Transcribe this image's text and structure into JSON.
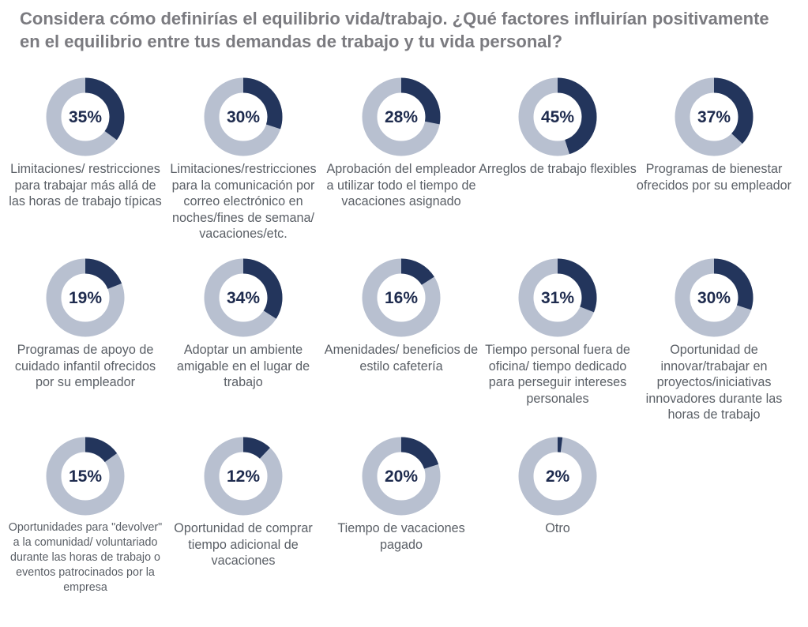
{
  "header": {
    "title": "Considera cómo definirías el equilibrio vida/trabajo. ¿Qué factores influirían positivamente en el equilibrio entre tus demandas de trabajo y tu vida personal?"
  },
  "colors": {
    "fill": "#23355c",
    "track": "#b8c0d0",
    "label": "#5a5f66",
    "title": "#7b7b80"
  },
  "chart_data": {
    "type": "pie",
    "items": [
      {
        "value": 35,
        "display": "35%",
        "label": "Limitaciones/ restricciones para trabajar más allá de las horas de trabajo típicas"
      },
      {
        "value": 30,
        "display": "30%",
        "label": "Limitaciones/restricciones para la comunicación por correo electrónico en noches/fines de semana/ vacaciones/etc."
      },
      {
        "value": 28,
        "display": "28%",
        "label": "Aprobación del empleador a utilizar todo el tiempo de vacaciones asignado"
      },
      {
        "value": 45,
        "display": "45%",
        "label": "Arreglos de trabajo flexibles"
      },
      {
        "value": 37,
        "display": "37%",
        "label": "Programas de bienestar ofrecidos por su empleador"
      },
      {
        "value": 19,
        "display": "19%",
        "label": "Programas de apoyo de cuidado infantil ofrecidos por su empleador"
      },
      {
        "value": 34,
        "display": "34%",
        "label": "Adoptar un ambiente amigable en el lugar de trabajo"
      },
      {
        "value": 16,
        "display": "16%",
        "label": "Amenidades/ beneficios de estilo cafetería"
      },
      {
        "value": 31,
        "display": "31%",
        "label": "Tiempo personal fuera de oficina/ tiempo dedicado para perseguir intereses personales"
      },
      {
        "value": 30,
        "display": "30%",
        "label": "Oportunidad de innovar/trabajar en proyectos/iniciativas innovadores durante las horas de trabajo"
      },
      {
        "value": 15,
        "display": "15%",
        "label": "Oportunidades para \"devolver\" a la comunidad/ voluntariado durante las horas de trabajo o eventos patrocinados por la empresa"
      },
      {
        "value": 12,
        "display": "12%",
        "label": "Oportunidad de comprar tiempo adicional de vacaciones"
      },
      {
        "value": 20,
        "display": "20%",
        "label": "Tiempo de vacaciones pagado"
      },
      {
        "value": 2,
        "display": "2%",
        "label": "Otro"
      }
    ]
  }
}
